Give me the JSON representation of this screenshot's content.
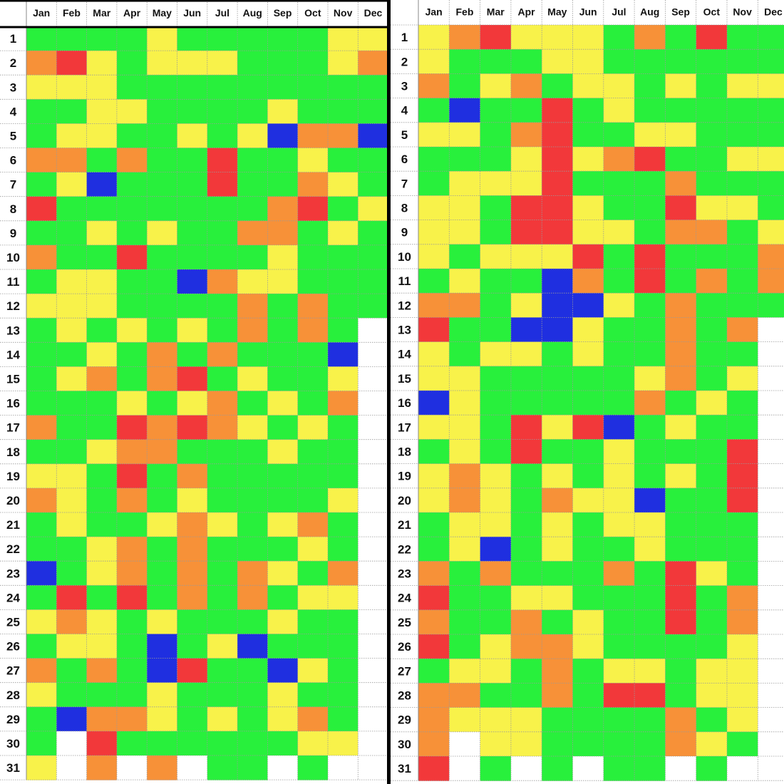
{
  "legend_colors": {
    "G": "#28f03c",
    "Y": "#f8f24a",
    "O": "#f79138",
    "R": "#f2383a",
    "B": "#1f2fe0",
    "W": "#ffffff"
  },
  "chart_data": [
    {
      "type": "heatmap",
      "title": "",
      "months": [
        "Jan",
        "Feb",
        "Mar",
        "Apr",
        "May",
        "Jun",
        "Jul",
        "Aug",
        "Sep",
        "Oct",
        "Nov",
        "Dec"
      ],
      "days": [
        "1",
        "2",
        "3",
        "4",
        "5",
        "6",
        "7",
        "8",
        "9",
        "10",
        "11",
        "12",
        "13",
        "14",
        "15",
        "16",
        "17",
        "18",
        "19",
        "20",
        "21",
        "22",
        "23",
        "24",
        "25",
        "26",
        "27",
        "28",
        "29",
        "30",
        "31"
      ],
      "cells": [
        "GGGGYGGGGGYY",
        "ORYGYYYGGGYO",
        "YYYGGGGGGGGG",
        "GGYYGGGGYGGG",
        "GYYGGYGYBOOB",
        "OOGOGGRGGYGG",
        "GYBGGGRGGOYG",
        "RGGGGGGGORGY",
        "GGYGYGGOOGYG",
        "OGGRGGGGYGGG",
        "GYYGGBOYYGGG",
        "YYYGGGGOGOGG",
        "GYGYGYGOGOGW",
        "GGYGOGOGGGBW",
        "GYOGORGYGGYW",
        "GGGYGYOGYGOW",
        "OGGROROYGYGW",
        "GGYOOGGGYGGW",
        "YYGRGOGGGGGW",
        "OYGOGYGGGGYW",
        "GYGGYOYGYOGW",
        "GGYOGOGGGYGW",
        "BGYOGOGOYGOW",
        "GRGRGOGOGYYW",
        "YOYGYGGGYGGW",
        "GYYGBGYBGGGW",
        "OGOGBRGGBYGW",
        "YGGGYGGGYGGW",
        "GBOOYGYGYOGW",
        "GWRGGGGGGYYW",
        "YWOWOWGGWGWW"
      ]
    },
    {
      "type": "heatmap",
      "title": "",
      "months": [
        "Jan",
        "Feb",
        "Mar",
        "Apr",
        "May",
        "Jun",
        "Jul",
        "Aug",
        "Sep",
        "Oct",
        "Nov",
        "Dec"
      ],
      "days": [
        "1",
        "2",
        "3",
        "4",
        "5",
        "6",
        "7",
        "8",
        "9",
        "10",
        "11",
        "12",
        "13",
        "14",
        "15",
        "16",
        "17",
        "18",
        "19",
        "20",
        "21",
        "22",
        "23",
        "24",
        "25",
        "26",
        "27",
        "28",
        "29",
        "30",
        "31"
      ],
      "cells": [
        "YORYYYGOGRGG",
        "YGGGYYGGGGGG",
        "OGYOGYYGYGYY",
        "GBGGRGYGGGGG",
        "YYGORGGYYGGG",
        "GGGYRYORGGYY",
        "GYYYRGGGOGGG",
        "YYGRRYGGRYYG",
        "YYGRRYYGOOGY",
        "YGYYYRGRGGGO",
        "GYGGBOGRGOGO",
        "OOGYBBYGOGGG",
        "RGGBBYGGOGOW",
        "YGYYGYGGOGGW",
        "YYGGGGGYOGYW",
        "BYGGGGGOGYGW",
        "YYGRYRBGYGGW",
        "GYGRGGYGGGRW",
        "YOYGYGYGYGRW",
        "YOYGOYYBGGRW",
        "GYYGYGYYGGGW",
        "GYBGYGGYGGGW",
        "OGOGGGOGRYGW",
        "RGGYYGGGRGOW",
        "OGGOGYGGRGOW",
        "RGYOOYGGGGYW",
        "GYYGOGYYGYYW",
        "OOGGOGRRGYYW",
        "OYYYGGGGOGYW",
        "OWYYGGGGOYGW",
        "RWGWGWGGWGWW"
      ]
    }
  ]
}
